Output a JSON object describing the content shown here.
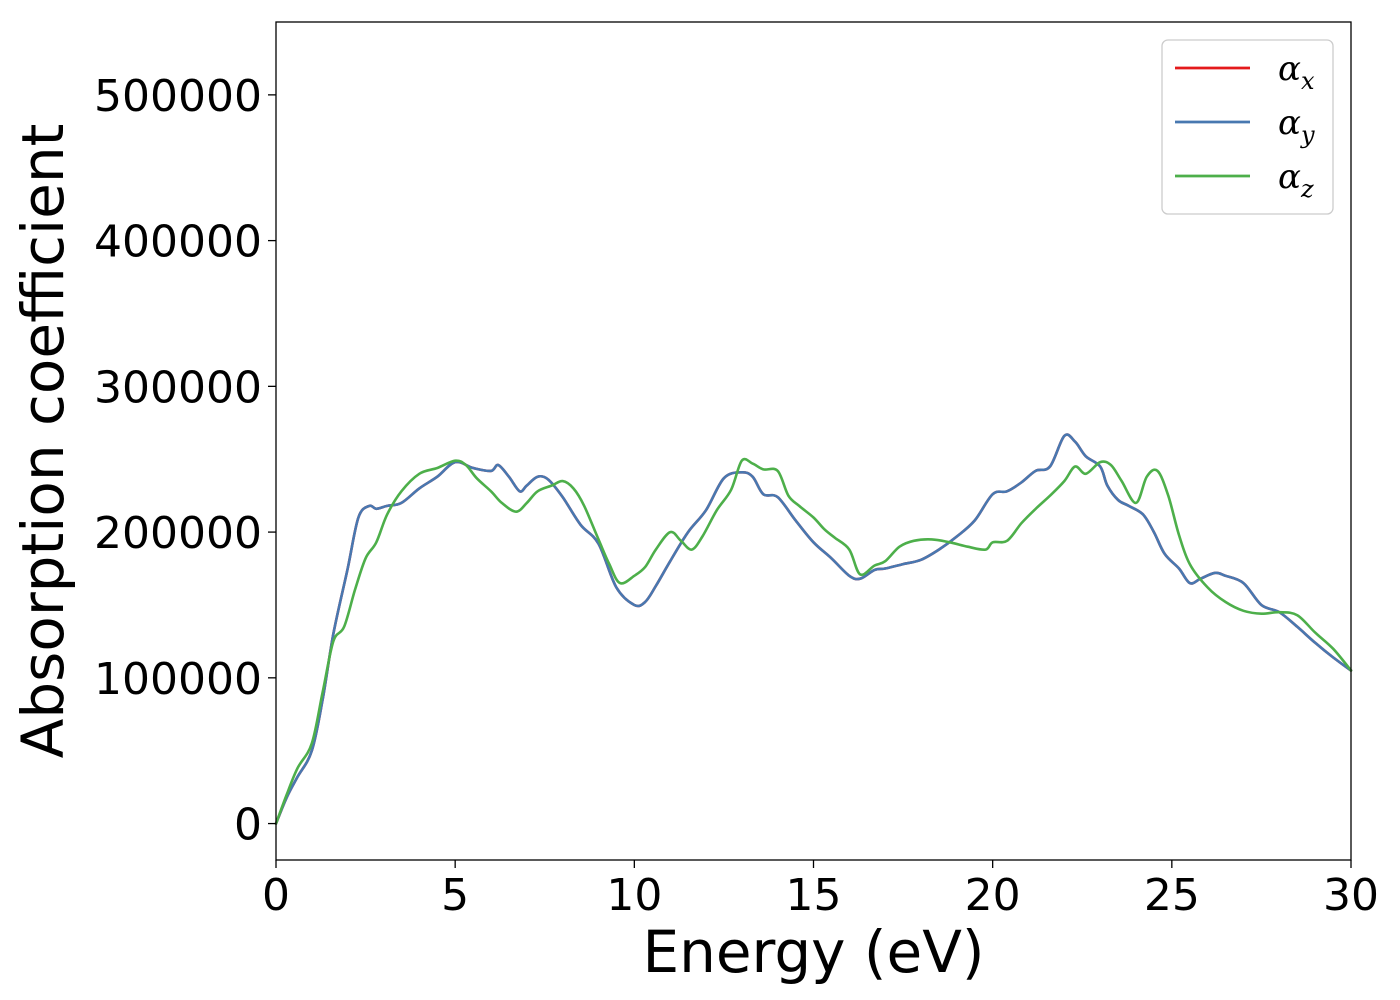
{
  "chart_data": {
    "type": "line",
    "title": "",
    "xlabel": "Energy (eV)",
    "ylabel": "Absorption coefficient",
    "xlim": [
      0,
      30
    ],
    "ylim": [
      -25000,
      550000
    ],
    "x_ticks": [
      0,
      5,
      10,
      15,
      20,
      25,
      30
    ],
    "y_ticks": [
      0,
      100000,
      200000,
      300000,
      400000,
      500000
    ],
    "x_tick_labels": [
      "0",
      "5",
      "10",
      "15",
      "20",
      "25",
      "30"
    ],
    "y_tick_labels": [
      "0",
      "100000",
      "200000",
      "300000",
      "400000",
      "500000"
    ],
    "grid": false,
    "legend_position": "top-right",
    "series": [
      {
        "name": "α_x",
        "label_base": "α",
        "label_sub": "x",
        "color": "#e41a1c",
        "x": [
          0,
          0.3,
          0.6,
          1.0,
          1.3,
          1.6,
          2.0,
          2.3,
          2.6,
          2.8,
          3.1,
          3.5,
          4.0,
          4.5,
          5.0,
          5.5,
          6.0,
          6.2,
          6.5,
          6.8,
          7.0,
          7.3,
          7.6,
          8.0,
          8.5,
          9.0,
          9.5,
          10.0,
          10.3,
          10.6,
          11.0,
          11.5,
          12.0,
          12.5,
          13.0,
          13.3,
          13.6,
          14.0,
          14.5,
          15.0,
          15.5,
          16.0,
          16.3,
          16.7,
          17.0,
          17.5,
          18.0,
          18.5,
          19.0,
          19.5,
          20.0,
          20.4,
          20.8,
          21.2,
          21.6,
          22.0,
          22.3,
          22.6,
          23.0,
          23.2,
          23.5,
          23.8,
          24.2,
          24.5,
          24.8,
          25.2,
          25.5,
          25.8,
          26.2,
          26.5,
          27.0,
          27.5,
          28.0,
          28.5,
          29.0,
          29.5,
          30.0
        ],
        "values": [
          0,
          18000,
          32000,
          50000,
          85000,
          130000,
          175000,
          210000,
          218000,
          216000,
          218000,
          220000,
          230000,
          238000,
          248000,
          244000,
          242000,
          246000,
          238000,
          228000,
          232000,
          238000,
          236000,
          224000,
          205000,
          192000,
          162000,
          150000,
          152000,
          163000,
          180000,
          200000,
          215000,
          237000,
          241000,
          238000,
          226000,
          224000,
          208000,
          193000,
          182000,
          170000,
          168000,
          174000,
          175000,
          178000,
          181000,
          188000,
          197000,
          208000,
          226000,
          228000,
          234000,
          242000,
          245000,
          266000,
          262000,
          252000,
          245000,
          232000,
          222000,
          218000,
          212000,
          200000,
          185000,
          175000,
          165000,
          168000,
          172000,
          170000,
          165000,
          150000,
          145000,
          135000,
          124000,
          114000,
          105000
        ]
      },
      {
        "name": "α_y",
        "label_base": "α",
        "label_sub": "y",
        "color": "#4878b0",
        "x": [
          0,
          0.3,
          0.6,
          1.0,
          1.3,
          1.6,
          2.0,
          2.3,
          2.6,
          2.8,
          3.1,
          3.5,
          4.0,
          4.5,
          5.0,
          5.5,
          6.0,
          6.2,
          6.5,
          6.8,
          7.0,
          7.3,
          7.6,
          8.0,
          8.5,
          9.0,
          9.5,
          10.0,
          10.3,
          10.6,
          11.0,
          11.5,
          12.0,
          12.5,
          13.0,
          13.3,
          13.6,
          14.0,
          14.5,
          15.0,
          15.5,
          16.0,
          16.3,
          16.7,
          17.0,
          17.5,
          18.0,
          18.5,
          19.0,
          19.5,
          20.0,
          20.4,
          20.8,
          21.2,
          21.6,
          22.0,
          22.3,
          22.6,
          23.0,
          23.2,
          23.5,
          23.8,
          24.2,
          24.5,
          24.8,
          25.2,
          25.5,
          25.8,
          26.2,
          26.5,
          27.0,
          27.5,
          28.0,
          28.5,
          29.0,
          29.5,
          30.0
        ],
        "values": [
          0,
          18000,
          32000,
          50000,
          85000,
          130000,
          175000,
          210000,
          218000,
          216000,
          218000,
          220000,
          230000,
          238000,
          248000,
          244000,
          242000,
          246000,
          238000,
          228000,
          232000,
          238000,
          236000,
          224000,
          205000,
          192000,
          162000,
          150000,
          152000,
          163000,
          180000,
          200000,
          215000,
          237000,
          241000,
          238000,
          226000,
          224000,
          208000,
          193000,
          182000,
          170000,
          168000,
          174000,
          175000,
          178000,
          181000,
          188000,
          197000,
          208000,
          226000,
          228000,
          234000,
          242000,
          245000,
          266000,
          262000,
          252000,
          245000,
          232000,
          222000,
          218000,
          212000,
          200000,
          185000,
          175000,
          165000,
          168000,
          172000,
          170000,
          165000,
          150000,
          145000,
          135000,
          124000,
          114000,
          105000
        ]
      },
      {
        "name": "α_z",
        "label_base": "α",
        "label_sub": "z",
        "color": "#4daf4a",
        "x": [
          0,
          0.3,
          0.6,
          1.0,
          1.3,
          1.6,
          1.9,
          2.2,
          2.5,
          2.8,
          3.1,
          3.5,
          4.0,
          4.5,
          5.0,
          5.3,
          5.6,
          6.0,
          6.3,
          6.7,
          7.0,
          7.3,
          7.7,
          8.0,
          8.3,
          8.6,
          9.0,
          9.3,
          9.6,
          10.0,
          10.3,
          10.6,
          11.0,
          11.3,
          11.6,
          11.9,
          12.3,
          12.7,
          13.0,
          13.3,
          13.6,
          14.0,
          14.3,
          14.6,
          15.0,
          15.3,
          15.6,
          16.0,
          16.3,
          16.7,
          17.0,
          17.4,
          17.8,
          18.3,
          18.8,
          19.3,
          19.8,
          20.0,
          20.4,
          20.8,
          21.2,
          21.6,
          22.0,
          22.3,
          22.6,
          23.0,
          23.3,
          23.6,
          24.0,
          24.3,
          24.6,
          24.9,
          25.2,
          25.5,
          26.0,
          26.5,
          27.0,
          27.5,
          28.0,
          28.5,
          29.0,
          29.5,
          30.0
        ],
        "values": [
          0,
          20000,
          38000,
          55000,
          90000,
          125000,
          135000,
          160000,
          182000,
          193000,
          212000,
          228000,
          240000,
          244000,
          249000,
          246000,
          237000,
          228000,
          220000,
          214000,
          220000,
          228000,
          232000,
          235000,
          230000,
          218000,
          195000,
          178000,
          165000,
          170000,
          176000,
          188000,
          200000,
          194000,
          188000,
          197000,
          215000,
          229000,
          249000,
          247000,
          243000,
          242000,
          225000,
          218000,
          210000,
          202000,
          196000,
          188000,
          171000,
          177000,
          180000,
          190000,
          194000,
          195000,
          193000,
          190000,
          188000,
          193000,
          194000,
          206000,
          216000,
          225000,
          235000,
          245000,
          240000,
          248000,
          246000,
          235000,
          220000,
          238000,
          242000,
          225000,
          198000,
          178000,
          162000,
          152000,
          146000,
          144000,
          145000,
          143000,
          131000,
          120000,
          105000
        ]
      }
    ]
  }
}
